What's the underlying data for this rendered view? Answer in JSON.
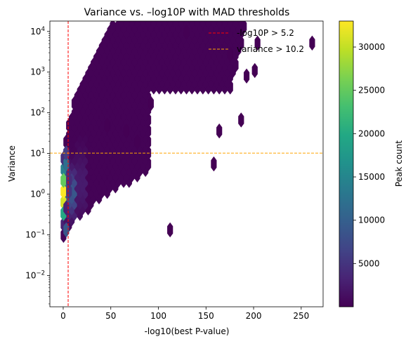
{
  "chart_data": {
    "type": "hexbin",
    "title": "Variance vs. –log10P with MAD thresholds",
    "xlabel": "-log10(best P-value)",
    "ylabel": "Variance",
    "x_range": [
      -14,
      273
    ],
    "y_range": [
      0.0017,
      18000
    ],
    "y_scale": "log",
    "x_ticks": [
      0,
      50,
      100,
      150,
      200,
      250
    ],
    "x_tick_labels": [
      "0",
      "50",
      "100",
      "150",
      "200",
      "250"
    ],
    "y_ticks": [
      0.01,
      0.1,
      1,
      10,
      100,
      1000,
      10000
    ],
    "y_tick_base": "10",
    "y_tick_exponents": [
      "−2",
      "−1",
      "0",
      "1",
      "2",
      "3",
      "4"
    ],
    "grid": false,
    "thresholds": [
      {
        "label": "-log10P > 5.2",
        "axis": "x",
        "value": 5.2,
        "color": "#ff0000"
      },
      {
        "label": "variance > 10.2",
        "axis": "y",
        "value": 10.2,
        "color": "#ffa500"
      }
    ],
    "legend_placement": "top-right",
    "colorbar": {
      "label": "Peak count",
      "min": 1,
      "max": 33000,
      "ticks": [
        5000,
        10000,
        15000,
        20000,
        25000,
        30000
      ],
      "tick_labels": [
        "5000",
        "10000",
        "15000",
        "20000",
        "25000",
        "30000"
      ],
      "colormap": "viridis"
    },
    "density_ridge": [
      {
        "x": 0.5,
        "y": 0.6,
        "count": 31000
      },
      {
        "x": 0.5,
        "y": 1.2,
        "count": 33000
      },
      {
        "x": 0.5,
        "y": 2.5,
        "count": 25000
      },
      {
        "x": 0.5,
        "y": 0.3,
        "count": 20000
      },
      {
        "x": 0.5,
        "y": 5,
        "count": 12000
      },
      {
        "x": 0.5,
        "y": 0.15,
        "count": 9000
      },
      {
        "x": 0.5,
        "y": 10,
        "count": 6000
      },
      {
        "x": 5,
        "y": 1,
        "count": 5000
      },
      {
        "x": 5,
        "y": 2.5,
        "count": 4000
      },
      {
        "x": 5,
        "y": 0.4,
        "count": 3000
      }
    ],
    "outlier_points": [
      {
        "x": 187,
        "y": 75
      },
      {
        "x": 165,
        "y": 38
      },
      {
        "x": 158,
        "y": 6
      },
      {
        "x": 110,
        "y": 0.12
      },
      {
        "x": 202,
        "y": 1200
      },
      {
        "x": 193,
        "y": 750
      },
      {
        "x": 260,
        "y": 6000
      },
      {
        "x": 205,
        "y": 6000
      },
      {
        "x": 178,
        "y": 3000
      },
      {
        "x": 92,
        "y": 150
      },
      {
        "x": 65,
        "y": 40
      },
      {
        "x": 75,
        "y": 18
      },
      {
        "x": 45,
        "y": 45
      },
      {
        "x": 130,
        "y": 9000
      }
    ]
  }
}
